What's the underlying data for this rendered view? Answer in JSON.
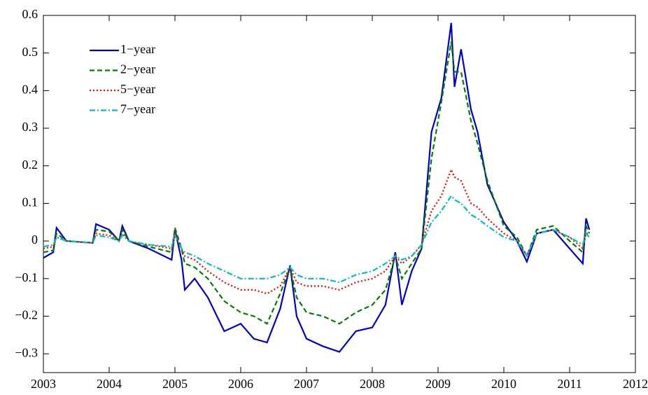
{
  "chart_data": {
    "type": "line",
    "x": [
      2003.0,
      2003.15,
      2003.2,
      2003.35,
      2003.75,
      2003.8,
      2004.0,
      2004.15,
      2004.2,
      2004.3,
      2004.6,
      2004.95,
      2005.0,
      2005.1,
      2005.15,
      2005.3,
      2005.5,
      2005.75,
      2006.0,
      2006.2,
      2006.4,
      2006.6,
      2006.75,
      2006.85,
      2007.0,
      2007.25,
      2007.5,
      2007.75,
      2008.0,
      2008.2,
      2008.35,
      2008.45,
      2008.6,
      2008.75,
      2008.9,
      2009.05,
      2009.2,
      2009.25,
      2009.35,
      2009.5,
      2009.6,
      2009.75,
      2010.0,
      2010.2,
      2010.35,
      2010.5,
      2010.75,
      2011.0,
      2011.2,
      2011.25,
      2011.3
    ],
    "series": [
      {
        "name": "1−year",
        "color": "#0000cc",
        "dash": "solid",
        "values": [
          -0.045,
          -0.03,
          0.035,
          0.0,
          -0.005,
          0.045,
          0.03,
          0.0,
          0.04,
          0.0,
          -0.02,
          -0.05,
          0.03,
          -0.05,
          -0.13,
          -0.1,
          -0.15,
          -0.24,
          -0.22,
          -0.26,
          -0.27,
          -0.18,
          -0.065,
          -0.2,
          -0.26,
          -0.28,
          -0.295,
          -0.24,
          -0.23,
          -0.17,
          -0.03,
          -0.17,
          -0.08,
          -0.02,
          0.29,
          0.38,
          0.58,
          0.41,
          0.51,
          0.35,
          0.29,
          0.15,
          0.05,
          0.0,
          -0.055,
          0.02,
          0.03,
          -0.02,
          -0.06,
          0.06,
          0.03
        ]
      },
      {
        "name": "2−year",
        "color": "#007f00",
        "dash": "dashed",
        "values": [
          -0.03,
          -0.025,
          0.02,
          0.0,
          -0.005,
          0.03,
          0.025,
          0.0,
          0.03,
          0.0,
          -0.015,
          -0.03,
          0.035,
          -0.02,
          -0.06,
          -0.07,
          -0.1,
          -0.16,
          -0.19,
          -0.2,
          -0.22,
          -0.14,
          -0.07,
          -0.15,
          -0.19,
          -0.2,
          -0.22,
          -0.19,
          -0.17,
          -0.13,
          -0.04,
          -0.1,
          -0.06,
          -0.02,
          0.22,
          0.37,
          0.53,
          0.45,
          0.45,
          0.32,
          0.26,
          0.16,
          0.04,
          0.01,
          -0.04,
          0.03,
          0.04,
          0.0,
          -0.03,
          0.04,
          0.02
        ]
      },
      {
        "name": "5−year",
        "color": "#ff0000",
        "dash": "dotted",
        "values": [
          -0.02,
          -0.015,
          0.01,
          0.0,
          -0.005,
          0.02,
          0.015,
          0.0,
          0.02,
          0.0,
          -0.01,
          -0.02,
          0.02,
          -0.02,
          -0.04,
          -0.05,
          -0.08,
          -0.11,
          -0.13,
          -0.13,
          -0.14,
          -0.12,
          -0.07,
          -0.11,
          -0.12,
          -0.12,
          -0.13,
          -0.11,
          -0.1,
          -0.08,
          -0.04,
          -0.06,
          -0.04,
          -0.01,
          0.08,
          0.12,
          0.19,
          0.17,
          0.16,
          0.1,
          0.09,
          0.06,
          0.02,
          0.0,
          -0.04,
          0.02,
          0.03,
          0.01,
          -0.02,
          0.02,
          0.02
        ]
      },
      {
        "name": "7−year",
        "color": "#00bfbf",
        "dash": "dashdot",
        "values": [
          -0.015,
          -0.01,
          0.01,
          0.0,
          -0.005,
          0.015,
          0.01,
          0.0,
          0.015,
          0.0,
          -0.01,
          -0.015,
          0.015,
          -0.02,
          -0.03,
          -0.04,
          -0.06,
          -0.08,
          -0.1,
          -0.1,
          -0.1,
          -0.09,
          -0.07,
          -0.09,
          -0.1,
          -0.1,
          -0.11,
          -0.09,
          -0.08,
          -0.06,
          -0.04,
          -0.05,
          -0.04,
          -0.01,
          0.05,
          0.08,
          0.12,
          0.11,
          0.1,
          0.07,
          0.06,
          0.04,
          0.01,
          0.0,
          -0.04,
          0.02,
          0.03,
          0.01,
          -0.01,
          0.02,
          0.01
        ]
      }
    ],
    "xlim": [
      2003,
      2012
    ],
    "xticks": [
      2003,
      2004,
      2005,
      2006,
      2007,
      2008,
      2009,
      2010,
      2011,
      2012
    ],
    "ylim": [
      -0.35,
      0.6
    ],
    "yticks": [
      {
        "value": -0.3,
        "label": "−0.3"
      },
      {
        "value": -0.2,
        "label": "−0.2"
      },
      {
        "value": -0.1,
        "label": "−0.1"
      },
      0,
      0.1,
      0.2,
      0.3,
      0.4,
      0.5,
      0.6
    ],
    "legend": "top-left"
  }
}
